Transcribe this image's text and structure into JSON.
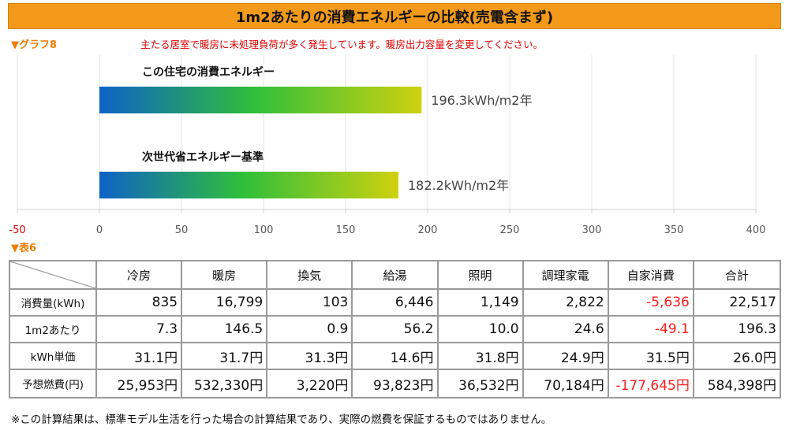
{
  "title": "1m2あたりの消費エネルギーの比較(売電含まず)",
  "graph_label": "▼グラフ8",
  "warning": "主たる居室で暖房に未処理負荷が多く発生しています。暖房出力容量を変更してください。",
  "table_label": "▼表6",
  "colors": {
    "title_bg": "#f39a1a",
    "bar_start": "#0e62c6",
    "bar_mid": "#2fbf3a",
    "bar_end": "#cfd10f",
    "negative": "#ff1a1a",
    "section_label": "#ef7c00"
  },
  "chart_data": {
    "type": "bar",
    "orientation": "horizontal",
    "categories": [
      "この住宅の消費エネルギー",
      "次世代省エネルギー基準"
    ],
    "values": [
      196.3,
      182.2
    ],
    "value_labels": [
      "196.3kWh/m2年",
      "182.2kWh/m2年"
    ],
    "xlim": [
      -50,
      400
    ],
    "ticks": [
      -50,
      0,
      50,
      100,
      150,
      200,
      250,
      300,
      350,
      400
    ],
    "tick_labels": [
      "-50",
      "0",
      "50",
      "100",
      "150",
      "200",
      "250",
      "300",
      "350",
      "400"
    ],
    "grid": true
  },
  "table": {
    "columns": [
      "冷房",
      "暖房",
      "換気",
      "給湯",
      "照明",
      "調理家電",
      "自家消費",
      "合計"
    ],
    "rows": [
      {
        "label": "消費量(kWh)",
        "values": [
          "835",
          "16,799",
          "103",
          "6,446",
          "1,149",
          "2,822",
          "-5,636",
          "22,517"
        ]
      },
      {
        "label": "1m2あたり",
        "values": [
          "7.3",
          "146.5",
          "0.9",
          "56.2",
          "10.0",
          "24.6",
          "-49.1",
          "196.3"
        ]
      },
      {
        "label": "kWh単価",
        "values": [
          "31.1円",
          "31.7円",
          "31.3円",
          "14.6円",
          "31.8円",
          "24.9円",
          "31.5円",
          "26.0円"
        ]
      },
      {
        "label": "予想燃費(円)",
        "values": [
          "25,953円",
          "532,330円",
          "3,220円",
          "93,823円",
          "36,532円",
          "70,184円",
          "-177,645円",
          "584,398円"
        ]
      }
    ]
  },
  "footnote": "※この計算結果は、標準モデル生活を行った場合の計算結果であり、実際の燃費を保証するものではありません。"
}
